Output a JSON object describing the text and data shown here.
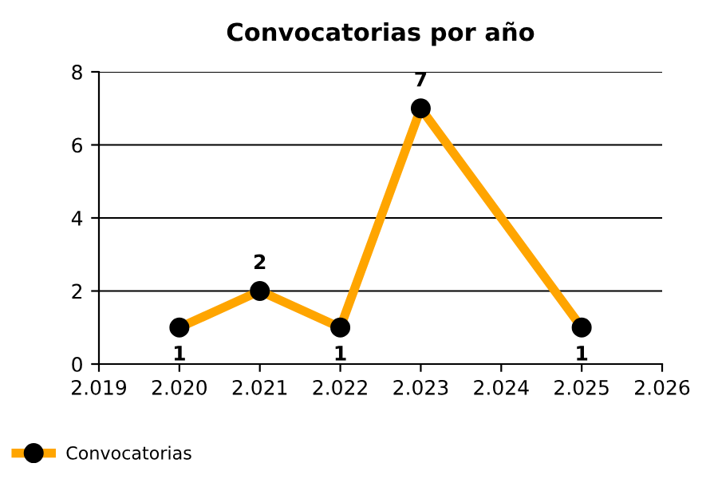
{
  "chart_data": {
    "type": "line",
    "title": "Convocatorias por año",
    "x": [
      2020,
      2021,
      2022,
      2023,
      2025
    ],
    "series": [
      {
        "name": "Convocatorias",
        "color": "#ffa500",
        "values": [
          1,
          2,
          1,
          7,
          1
        ]
      }
    ],
    "xlim": [
      2019,
      2026
    ],
    "xticks": [
      {
        "value": 2019,
        "label": "2.019"
      },
      {
        "value": 2020,
        "label": "2.020"
      },
      {
        "value": 2021,
        "label": "2.021"
      },
      {
        "value": 2022,
        "label": "2.022"
      },
      {
        "value": 2023,
        "label": "2.023"
      },
      {
        "value": 2024,
        "label": "2.024"
      },
      {
        "value": 2025,
        "label": "2.025"
      },
      {
        "value": 2026,
        "label": "2.026"
      }
    ],
    "ylim": [
      0,
      8
    ],
    "yticks": [
      0,
      2,
      4,
      6,
      8
    ],
    "grid": "y",
    "legend": "bottom left",
    "marker": "circle",
    "line_style": "solid",
    "data_labels": true
  }
}
